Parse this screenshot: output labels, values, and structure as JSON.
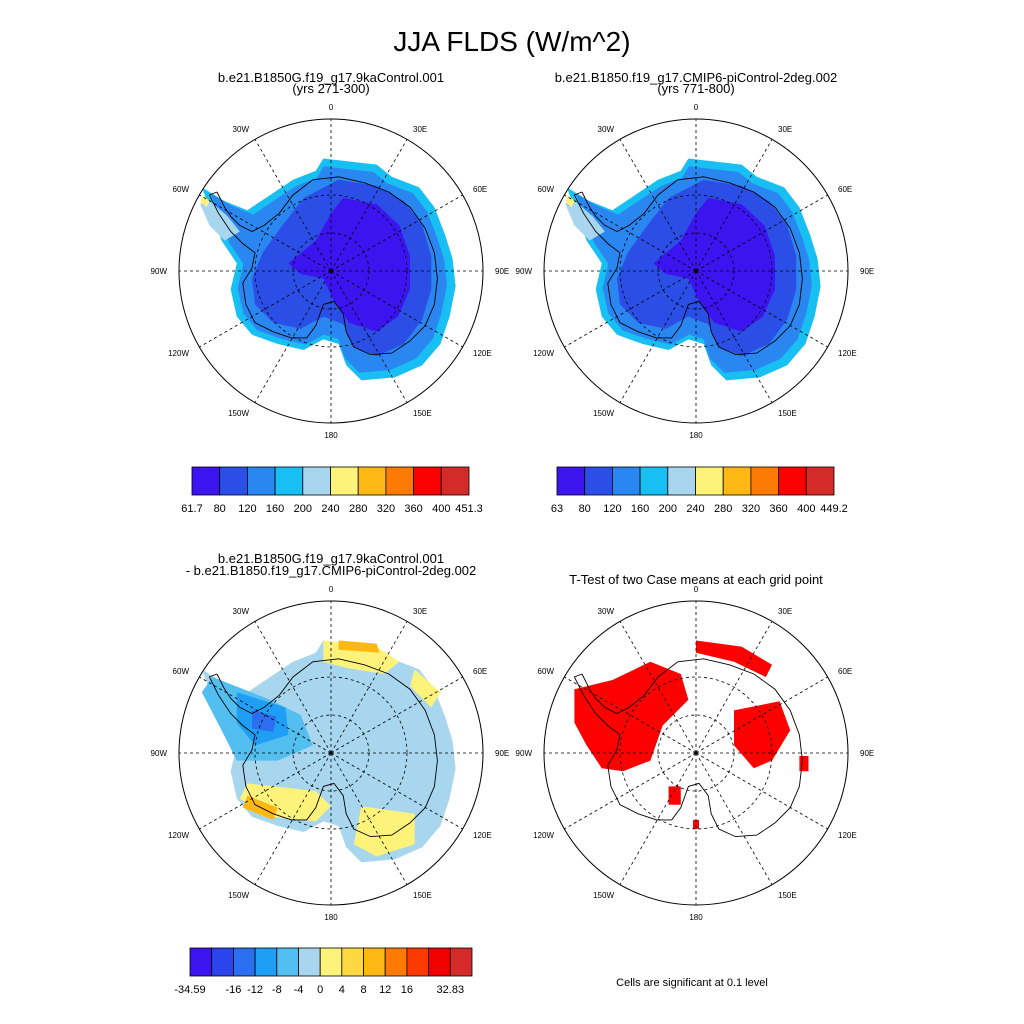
{
  "page": {
    "title": "JJA FLDS (W/m^2)"
  },
  "panels": [
    {
      "id": "case1",
      "title_line1": "b.e21.B1850G.f19_g17.9kaControl.001",
      "title_line2": "(yrs 271-300)",
      "fill": "mean"
    },
    {
      "id": "case2",
      "title_line1": "b.e21.B1850.f19_g17.CMIP6-piControl-2deg.002",
      "title_line2": "(yrs 771-800)",
      "fill": "mean"
    },
    {
      "id": "diff",
      "title_line1": "b.e21.B1850G.f19_g17.9kaControl.001",
      "title_line2": "- b.e21.B1850.f19_g17.CMIP6-piControl-2deg.002",
      "fill": "diff"
    },
    {
      "id": "ttest",
      "title_line1": "",
      "title_line2": "T-Test of two Case means at each grid point",
      "fill": "sig"
    }
  ],
  "lon_labels": [
    "0",
    "30E",
    "60E",
    "90E",
    "120E",
    "150E",
    "180",
    "150W",
    "120W",
    "90W",
    "60W",
    "30W"
  ],
  "colorbars": [
    {
      "id": "cb1",
      "labels": [
        "61.7",
        "80",
        "120",
        "160",
        "200",
        "240",
        "280",
        "320",
        "360",
        "400",
        "451.3"
      ],
      "colors": [
        "#3c14f0",
        "#2b4fe6",
        "#2a86f0",
        "#18bff2",
        "#a8d6ee",
        "#fef37a",
        "#fdb813",
        "#fd7a05",
        "#fb0000",
        "#d52a2a"
      ]
    },
    {
      "id": "cb2",
      "labels": [
        "63",
        "80",
        "120",
        "160",
        "200",
        "240",
        "280",
        "320",
        "360",
        "400",
        "449.2"
      ],
      "colors": [
        "#3c14f0",
        "#2b4fe6",
        "#2a86f0",
        "#18bff2",
        "#a8d6ee",
        "#fef37a",
        "#fdb813",
        "#fd7a05",
        "#fb0000",
        "#d52a2a"
      ]
    },
    {
      "id": "cb3",
      "labels": [
        "-34.59",
        "",
        "-16",
        "-12",
        "-8",
        "-4",
        "0",
        "4",
        "8",
        "12",
        "16",
        "",
        "32.83"
      ],
      "colors": [
        "#3c14f0",
        "#2b44ee",
        "#2b6ef0",
        "#1f9ef5",
        "#52bff0",
        "#a8d6ee",
        "#fef37a",
        "#fed840",
        "#fdb813",
        "#fd7a05",
        "#fb3a00",
        "#f00000",
        "#d52a2a"
      ]
    }
  ],
  "footnote": "Cells are significant at 0.1 level",
  "chart_data": [
    {
      "type": "heatmap",
      "title": "b.e21.B1850G.f19_g17.9kaControl.001 (yrs 271-300)",
      "projection": "south polar stereographic",
      "variable": "JJA FLDS",
      "units": "W/m^2",
      "range": [
        61.7,
        451.3
      ],
      "contour_levels": [
        80,
        120,
        160,
        200,
        240,
        280,
        320,
        360,
        400
      ]
    },
    {
      "type": "heatmap",
      "title": "b.e21.B1850.f19_g17.CMIP6-piControl-2deg.002 (yrs 771-800)",
      "projection": "south polar stereographic",
      "variable": "JJA FLDS",
      "units": "W/m^2",
      "range": [
        63,
        449.2
      ],
      "contour_levels": [
        80,
        120,
        160,
        200,
        240,
        280,
        320,
        360,
        400
      ]
    },
    {
      "type": "heatmap",
      "title": "b.e21.B1850G.f19_g17.9kaControl.001 - b.e21.B1850.f19_g17.CMIP6-piControl-2deg.002",
      "projection": "south polar stereographic",
      "units": "W/m^2",
      "range": [
        -34.59,
        32.83
      ],
      "contour_levels": [
        -16,
        -12,
        -8,
        -4,
        0,
        4,
        8,
        12,
        16
      ]
    },
    {
      "type": "heatmap",
      "title": "T-Test of two Case means at each grid point",
      "projection": "south polar stereographic",
      "significance_level": 0.1,
      "significant_color": "#ff0000"
    }
  ]
}
